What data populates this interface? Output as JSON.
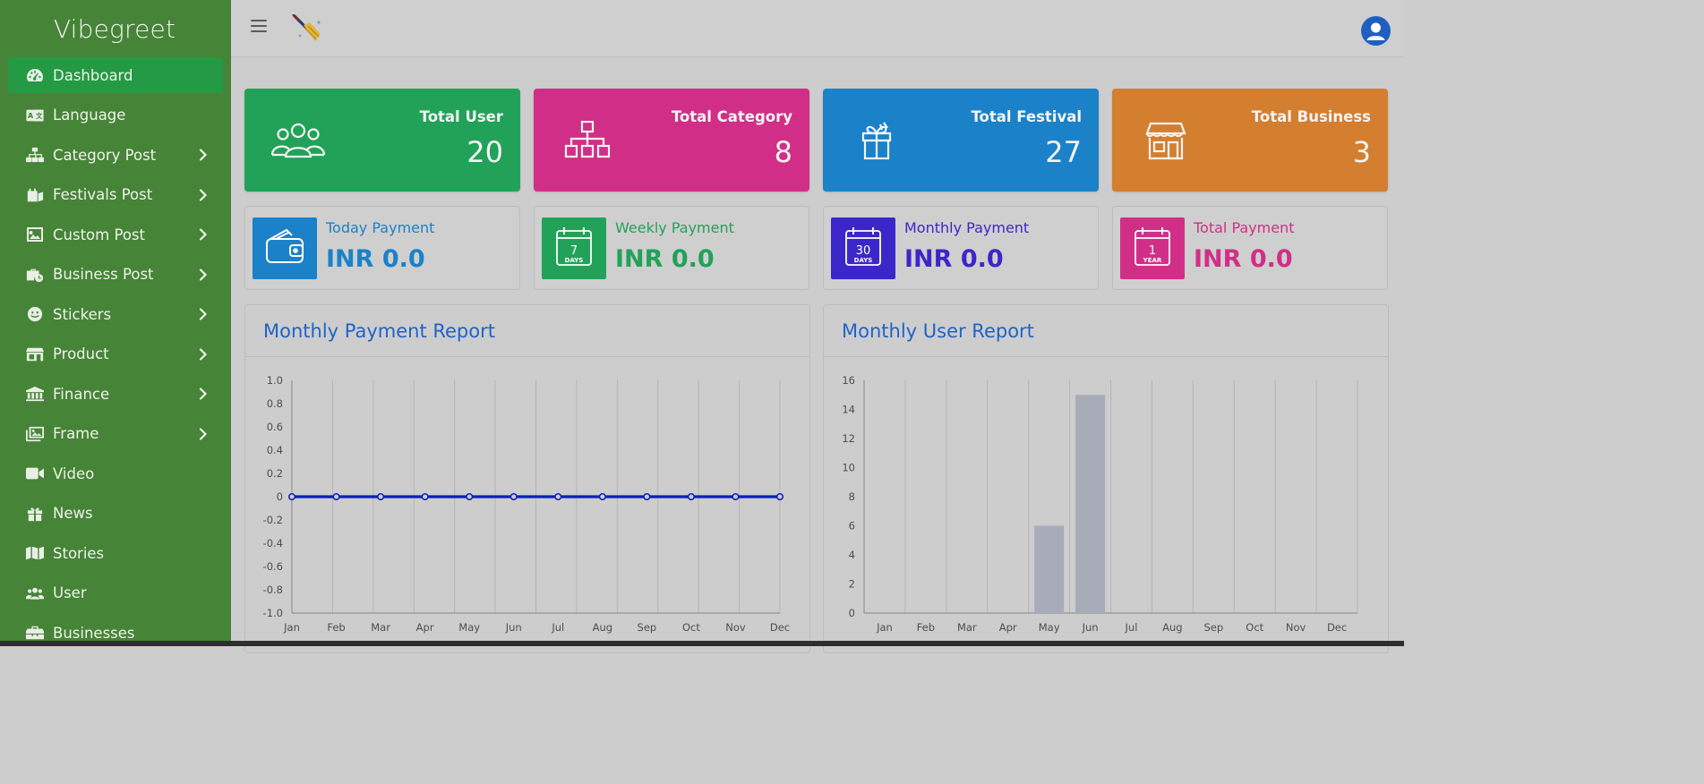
{
  "app": {
    "brand": "Vibegreet"
  },
  "sidebar": {
    "items": [
      {
        "label": "Dashboard",
        "icon": "gauge-icon",
        "submenu": false,
        "active": true
      },
      {
        "label": "Language",
        "icon": "translate-icon",
        "submenu": false
      },
      {
        "label": "Category Post",
        "icon": "sitemap-icon",
        "submenu": true
      },
      {
        "label": "Festivals Post",
        "icon": "calendar-icon",
        "submenu": true
      },
      {
        "label": "Custom Post",
        "icon": "image-icon",
        "submenu": true
      },
      {
        "label": "Business Post",
        "icon": "briefcase-clock-icon",
        "submenu": true
      },
      {
        "label": "Stickers",
        "icon": "smile-icon",
        "submenu": true
      },
      {
        "label": "Product",
        "icon": "store-icon",
        "submenu": true
      },
      {
        "label": "Finance",
        "icon": "bank-icon",
        "submenu": true
      },
      {
        "label": "Frame",
        "icon": "images-icon",
        "submenu": true
      },
      {
        "label": "Video",
        "icon": "video-icon",
        "submenu": false
      },
      {
        "label": "News",
        "icon": "gift-icon",
        "submenu": false
      },
      {
        "label": "Stories",
        "icon": "map-icon",
        "submenu": false
      },
      {
        "label": "User",
        "icon": "users-icon",
        "submenu": false
      },
      {
        "label": "Businesses",
        "icon": "toolbox-icon",
        "submenu": false
      }
    ]
  },
  "stats": [
    {
      "title": "Total User",
      "value": "20",
      "color": "#22a259",
      "icon": "users-icon"
    },
    {
      "title": "Total Category",
      "value": "8",
      "color": "#d12f87",
      "icon": "sitemap-icon"
    },
    {
      "title": "Total Festival",
      "value": "27",
      "color": "#1b82c9",
      "icon": "gift-icon"
    },
    {
      "title": "Total Business",
      "value": "3",
      "color": "#d47e2f",
      "icon": "store-icon"
    }
  ],
  "payments": [
    {
      "title": "Today Payment",
      "value": "INR 0.0",
      "color": "#1b82c9",
      "icon": "wallet-icon"
    },
    {
      "title": "Weekly Payment",
      "value": "INR 0.0",
      "color": "#22a259",
      "icon": "calendar-7-days-icon",
      "badge_top": "7",
      "badge_bottom": "DAYS"
    },
    {
      "title": "Monthly Payment",
      "value": "INR 0.0",
      "color": "#3b27c9",
      "icon": "calendar-30-days-icon",
      "badge_top": "30",
      "badge_bottom": "DAYS"
    },
    {
      "title": "Total Payment",
      "value": "INR 0.0",
      "color": "#d12f87",
      "icon": "calendar-1-year-icon",
      "badge_top": "1",
      "badge_bottom": "YEAR"
    }
  ],
  "chart_data": [
    {
      "type": "line",
      "title": "Monthly Payment Report",
      "categories": [
        "Jan",
        "Feb",
        "Mar",
        "Apr",
        "May",
        "Jun",
        "Jul",
        "Aug",
        "Sep",
        "Oct",
        "Nov",
        "Dec"
      ],
      "values": [
        0,
        0,
        0,
        0,
        0,
        0,
        0,
        0,
        0,
        0,
        0,
        0
      ],
      "ylim": [
        -1.0,
        1.0
      ],
      "yticks": [
        "1.0",
        "0.8",
        "0.6",
        "0.4",
        "0.2",
        "0",
        "-0.2",
        "-0.4",
        "-0.6",
        "-0.8",
        "-1.0"
      ],
      "line_color": "#0c1fb8"
    },
    {
      "type": "bar",
      "title": "Monthly User Report",
      "categories": [
        "Jan",
        "Feb",
        "Mar",
        "Apr",
        "May",
        "Jun",
        "Jul",
        "Aug",
        "Sep",
        "Oct",
        "Nov",
        "Dec"
      ],
      "values": [
        0,
        0,
        0,
        0,
        6,
        15,
        0,
        0,
        0,
        0,
        0,
        0
      ],
      "ylim": [
        0,
        16
      ],
      "yticks": [
        "16",
        "14",
        "12",
        "10",
        "8",
        "6",
        "4",
        "2",
        "0"
      ],
      "bar_color": "#a8acb8"
    }
  ]
}
